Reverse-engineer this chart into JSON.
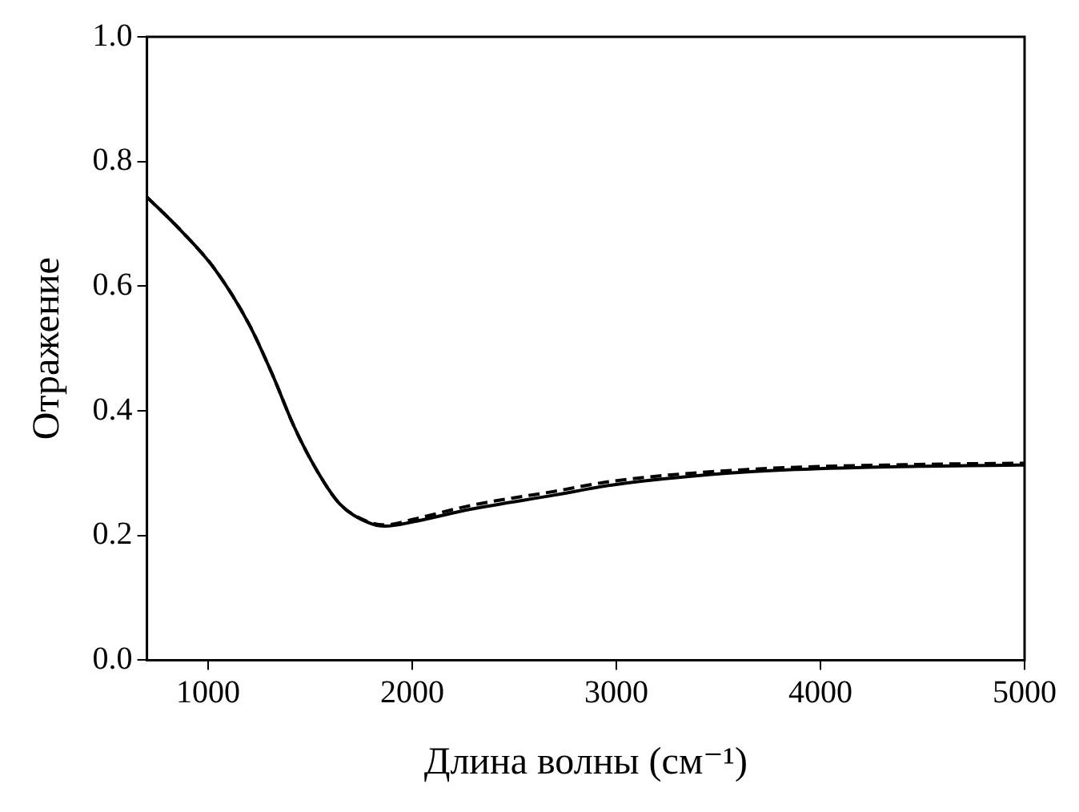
{
  "chart_data": {
    "type": "line",
    "xlabel": "Длина волны (см⁻¹)",
    "ylabel": "Отражение",
    "xlim": [
      700,
      5000
    ],
    "xticks": [
      1000,
      2000,
      3000,
      4000,
      5000
    ],
    "ylim": [
      0,
      1
    ],
    "yticks": [
      {
        "value": 0,
        "label": "0.0"
      },
      {
        "value": 0.2,
        "label": "0.2"
      },
      {
        "value": 0.4,
        "label": "0.4"
      },
      {
        "value": 0.6,
        "label": "0.6"
      },
      {
        "value": 0.8,
        "label": "0.8"
      },
      {
        "value": 1,
        "label": "1.0"
      }
    ],
    "grid": false,
    "legend": false,
    "marker": "none",
    "series": [
      {
        "color": "#000000",
        "line_style": "solid",
        "x": [
          700,
          867,
          1033,
          1200,
          1311,
          1422,
          1533,
          1644,
          1783,
          1867,
          2005,
          2283,
          2700,
          2978,
          3644,
          4478,
          5000
        ],
        "values": [
          0.743,
          0.689,
          0.627,
          0.539,
          0.461,
          0.374,
          0.304,
          0.251,
          0.221,
          0.215,
          0.222,
          0.242,
          0.265,
          0.281,
          0.302,
          0.311,
          0.313
        ]
      },
      {
        "color": "#000000",
        "line_style": "dashed",
        "x": [
          700,
          867,
          1033,
          1200,
          1311,
          1422,
          1533,
          1644,
          1783,
          1867,
          2005,
          2283,
          2700,
          2978,
          3644,
          4478,
          5000
        ],
        "values": [
          0.743,
          0.689,
          0.627,
          0.539,
          0.461,
          0.374,
          0.304,
          0.251,
          0.222,
          0.217,
          0.226,
          0.248,
          0.271,
          0.287,
          0.306,
          0.314,
          0.316
        ]
      }
    ]
  }
}
